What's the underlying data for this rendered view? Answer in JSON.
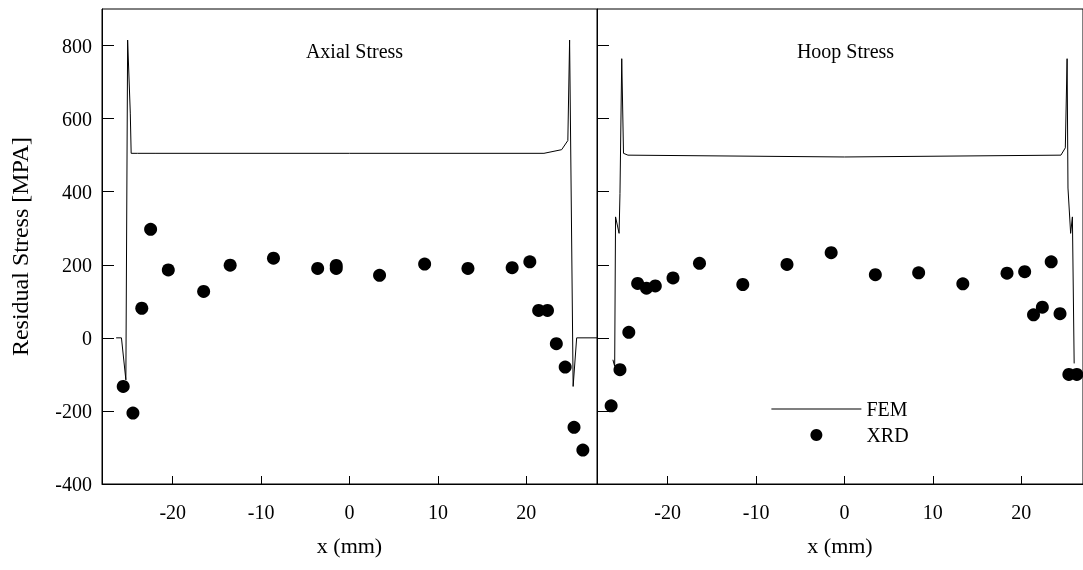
{
  "chart_data": [
    {
      "type": "line",
      "title": "Axial Stress",
      "xlabel": "x (mm)",
      "ylabel": "Residual Stress [MPA]",
      "xlim": [
        -28,
        28
      ],
      "ylim": [
        -400,
        900
      ],
      "xticks": [
        -20,
        -10,
        0,
        10,
        20
      ],
      "yticks": [
        -400,
        -200,
        0,
        200,
        400,
        600,
        800
      ],
      "grid": false,
      "series": [
        {
          "color": "#000000",
          "marker": "none",
          "x": [
            -26.4,
            -25.8,
            -25.3,
            -25.1,
            -24.8,
            -24.7,
            -24.0,
            -22.0,
            0,
            22.0,
            24.0,
            24.7,
            24.9,
            25.3,
            25.7,
            28
          ],
          "values": [
            0,
            0,
            -115,
            815,
            615,
            505,
            505,
            505,
            505,
            505,
            515,
            540,
            815,
            -133,
            0,
            0
          ]
        },
        {
          "type": "scatter",
          "color": "#000000",
          "marker": "circle",
          "x": [
            -25.6,
            -24.5,
            -23.5,
            -22.5,
            -20.5,
            -16.5,
            -13.5,
            -8.6,
            -3.6,
            -1.5,
            -1.5,
            3.4,
            8.5,
            13.4,
            18.4,
            20.4,
            21.4,
            22.4,
            23.4,
            24.4,
            25.4,
            26.4
          ],
          "values": [
            -133,
            -206,
            81,
            297,
            186,
            127,
            199,
            218,
            190,
            198,
            190,
            171,
            202,
            190,
            192,
            208,
            75,
            75,
            -16,
            -80,
            -245,
            -307
          ]
        }
      ]
    },
    {
      "type": "line",
      "title": "Hoop Stress",
      "xlabel": "x (mm)",
      "xlim": [
        -28,
        27
      ],
      "ylim": [
        -400,
        900
      ],
      "xticks": [
        -20,
        -10,
        0,
        10,
        20
      ],
      "yticks": [
        -400,
        -200,
        0,
        200,
        400,
        600,
        800
      ],
      "grid": false,
      "tick_labels": "x",
      "legend": "bottom",
      "series": [
        {
          "name": "FEM",
          "color": "#000000",
          "marker": "none",
          "x": [
            -26.2,
            -26.0,
            -25.9,
            -25.5,
            -25.4,
            -25.2,
            -25.0,
            -24.5,
            0,
            24.5,
            25.0,
            25.2,
            25.3,
            25.6,
            25.8,
            26.0
          ],
          "values": [
            -60,
            -78,
            331,
            286,
            395,
            764,
            505,
            500,
            495,
            500,
            520,
            764,
            410,
            286,
            331,
            -70
          ]
        },
        {
          "type": "scatter",
          "name": "XRD",
          "color": "#000000",
          "marker": "circle",
          "x": [
            -26.4,
            -25.4,
            -24.4,
            -23.4,
            -22.4,
            -21.4,
            -19.4,
            -16.4,
            -11.5,
            -6.5,
            -1.5,
            3.5,
            8.4,
            13.4,
            18.4,
            20.4,
            21.4,
            22.4,
            23.4,
            24.4,
            25.4,
            26.3
          ],
          "values": [
            -186,
            -87,
            15,
            149,
            136,
            142,
            164,
            204,
            146,
            201,
            233,
            173,
            178,
            148,
            177,
            181,
            63,
            84,
            208,
            66,
            -100,
            -100
          ]
        }
      ]
    }
  ]
}
